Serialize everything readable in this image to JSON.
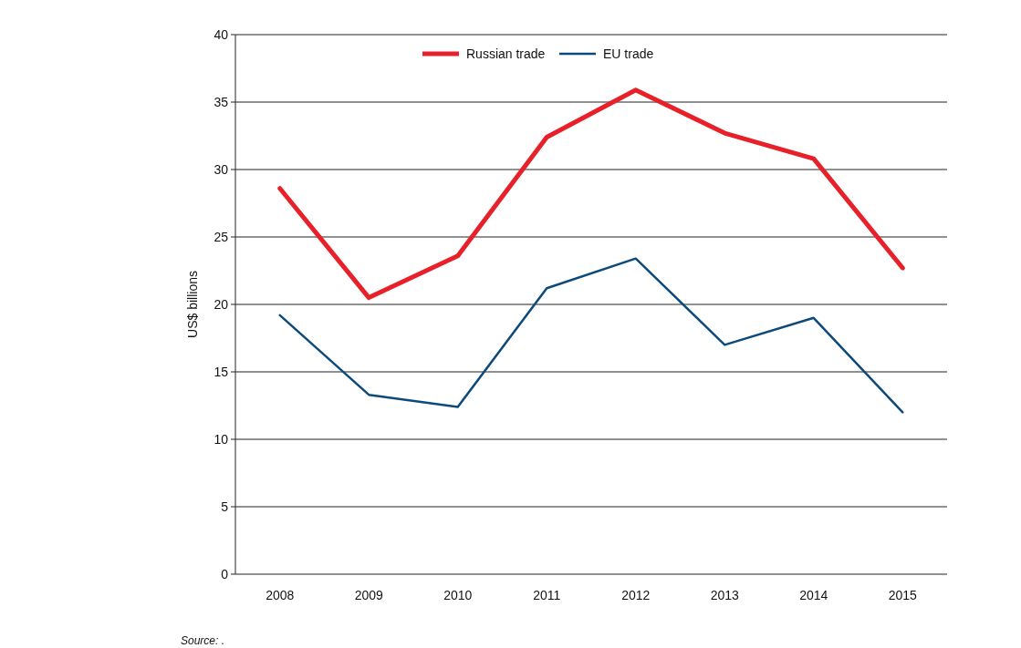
{
  "chart_data": {
    "type": "line",
    "ylabel": "US$ billions",
    "categories": [
      "2008",
      "2009",
      "2010",
      "2011",
      "2012",
      "2013",
      "2014",
      "2015"
    ],
    "series": [
      {
        "name": "Russian trade",
        "color": "#e8202a",
        "values": [
          28.6,
          20.5,
          23.6,
          32.4,
          35.9,
          32.7,
          30.8,
          22.7
        ]
      },
      {
        "name": "EU trade",
        "color": "#0d4a7c",
        "values": [
          19.2,
          13.3,
          12.4,
          21.2,
          23.4,
          17.0,
          19.0,
          12.0
        ]
      }
    ],
    "ylim": [
      0,
      40
    ],
    "yticks": [
      0,
      5,
      10,
      15,
      20,
      25,
      30,
      35,
      40
    ],
    "grid": "y",
    "legend": "top",
    "annotations": [
      "Source: ."
    ]
  }
}
